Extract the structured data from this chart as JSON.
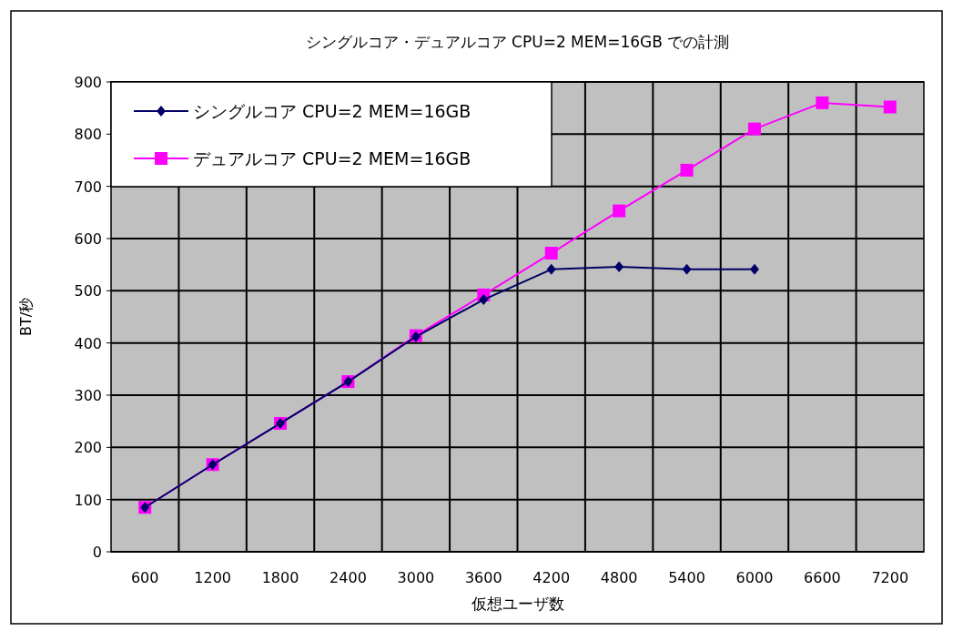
{
  "chart_data": {
    "type": "line",
    "title": "シングルコア・デュアルコア  CPU=2 MEM=16GB での計測",
    "xlabel": "仮想ユーザ数",
    "ylabel": "BT/秒",
    "categories": [
      "600",
      "1200",
      "1800",
      "2400",
      "3000",
      "3600",
      "4200",
      "4800",
      "5400",
      "6000",
      "6600",
      "7200"
    ],
    "series": [
      {
        "name": "シングルコア CPU=2 MEM=16GB",
        "color": "#000066",
        "marker": "diamond",
        "values": [
          85,
          167,
          246,
          326,
          412,
          483,
          541,
          546,
          541,
          541,
          null,
          null
        ]
      },
      {
        "name": "デュアルコア CPU=2 MEM=16GB",
        "color": "#ff00ff",
        "marker": "square",
        "values": [
          85,
          167,
          246,
          326,
          414,
          492,
          572,
          653,
          731,
          810,
          860,
          852
        ]
      }
    ],
    "ylim": [
      0,
      900
    ],
    "yticks": [
      0,
      100,
      200,
      300,
      400,
      500,
      600,
      700,
      800,
      900
    ],
    "grid": true,
    "legend": "top left"
  }
}
